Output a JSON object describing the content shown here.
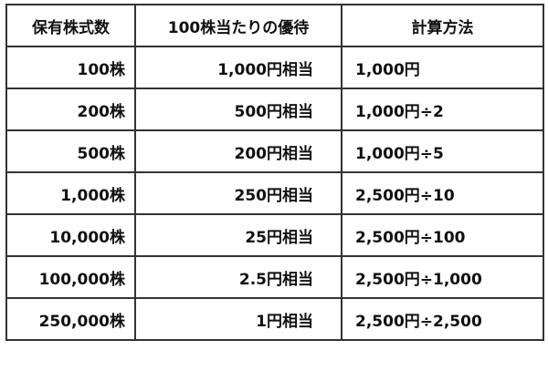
{
  "table": {
    "headers": [
      "保有株式数",
      "100株当たりの優待",
      "計算方法"
    ],
    "rows": [
      [
        "100株",
        "1,000円相当",
        "1,000円"
      ],
      [
        "200株",
        "500円相当",
        "1,000円÷2"
      ],
      [
        "500株",
        "200円相当",
        "1,000円÷5"
      ],
      [
        "1,000株",
        "250円相当",
        "2,500円÷10"
      ],
      [
        "10,000株",
        "25円相当",
        "2,500円÷100"
      ],
      [
        "100,000株",
        "2.5円相当",
        "2,500円÷1,000"
      ],
      [
        "250,000株",
        "1円相当",
        "2,500円÷2,500"
      ]
    ]
  }
}
